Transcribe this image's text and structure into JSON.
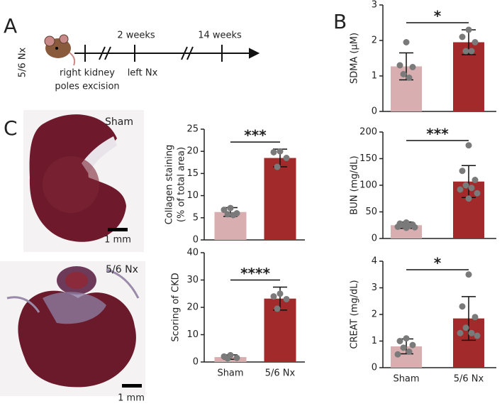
{
  "figure": {
    "panel_labels": [
      "A",
      "B",
      "C"
    ],
    "timeline": {
      "model": "5/6 Nx",
      "week_labels": [
        "2 weeks",
        "14 weeks"
      ],
      "step1": [
        "right kidney",
        "poles excision"
      ],
      "step2": "left Nx"
    },
    "images": [
      {
        "label": "Sham",
        "scale": "1 mm"
      },
      {
        "label": "5/6 Nx",
        "scale": "1 mm"
      }
    ]
  },
  "chart_data": [
    {
      "type": "bar",
      "ylabel": [
        "SDMA (µM)"
      ],
      "categories": [
        null,
        null
      ],
      "values": [
        1.27,
        1.95
      ],
      "errors": [
        0.38,
        0.35
      ],
      "colors": [
        "#d9aeb0",
        "#a32a2a"
      ],
      "points": [
        [
          1.95,
          1.3,
          1.25,
          1.05,
          0.95
        ],
        [
          2.3,
          2.1,
          1.95,
          1.7,
          1.7
        ]
      ],
      "point_color": "#7a7a7a",
      "significance": "*",
      "ylim": [
        0,
        3
      ],
      "yticks": [
        0,
        1,
        2,
        3
      ]
    },
    {
      "type": "bar",
      "ylabel": [
        "BUN (mg/dL)"
      ],
      "categories": [
        null,
        null
      ],
      "values": [
        25,
        107
      ],
      "errors": [
        6,
        30
      ],
      "colors": [
        "#d9aeb0",
        "#a32a2a"
      ],
      "points": [
        [
          30,
          28,
          26,
          25,
          24,
          22,
          21,
          20
        ],
        [
          175,
          127,
          110,
          100,
          95,
          92,
          85,
          75
        ]
      ],
      "point_color": "#7a7a7a",
      "significance": "***",
      "ylim": [
        0,
        200
      ],
      "yticks": [
        0,
        50,
        100,
        150,
        200
      ]
    },
    {
      "type": "bar",
      "ylabel": [
        "CREAT (mg/dL)"
      ],
      "categories": [
        "Sham",
        "5/6 Nx"
      ],
      "values": [
        0.8,
        1.85
      ],
      "errors": [
        0.28,
        0.82
      ],
      "colors": [
        "#d9aeb0",
        "#a32a2a"
      ],
      "points": [
        [
          1.1,
          1.0,
          0.85,
          0.75,
          0.6,
          0.5
        ],
        [
          3.5,
          2.3,
          1.9,
          1.5,
          1.3,
          1.3,
          1.2
        ]
      ],
      "point_color": "#7a7a7a",
      "significance": "*",
      "ylim": [
        0,
        4
      ],
      "yticks": [
        0,
        1,
        2,
        3,
        4
      ]
    },
    {
      "type": "bar",
      "ylabel": [
        "Collagen staining",
        "(% of total area)"
      ],
      "categories": [
        null,
        null
      ],
      "values": [
        6.3,
        18.5
      ],
      "errors": [
        1,
        2
      ],
      "colors": [
        "#d9aeb0",
        "#a32a2a"
      ],
      "points": [
        [
          7.2,
          6.8,
          6.0,
          5.8,
          5.6
        ],
        [
          20.0,
          19.8,
          18.5,
          16.5
        ]
      ],
      "point_color": "#7a7a7a",
      "significance": "***",
      "ylim": [
        0,
        25
      ],
      "yticks": [
        0,
        5,
        10,
        15,
        20,
        25
      ]
    },
    {
      "type": "bar",
      "ylabel": [
        "Scoring of CKD"
      ],
      "categories": [
        "Sham",
        "5/6 Nx"
      ],
      "values": [
        1.8,
        23.2
      ],
      "errors": [
        0.8,
        4.2
      ],
      "colors": [
        "#d9aeb0",
        "#a32a2a"
      ],
      "points": [
        [
          2.5,
          2.0,
          1.5,
          1.3
        ],
        [
          25,
          24,
          23,
          19.5
        ]
      ],
      "point_color": "#7a7a7a",
      "significance": "****",
      "ylim": [
        0,
        40
      ],
      "yticks": [
        0,
        10,
        20,
        30,
        40
      ]
    }
  ]
}
